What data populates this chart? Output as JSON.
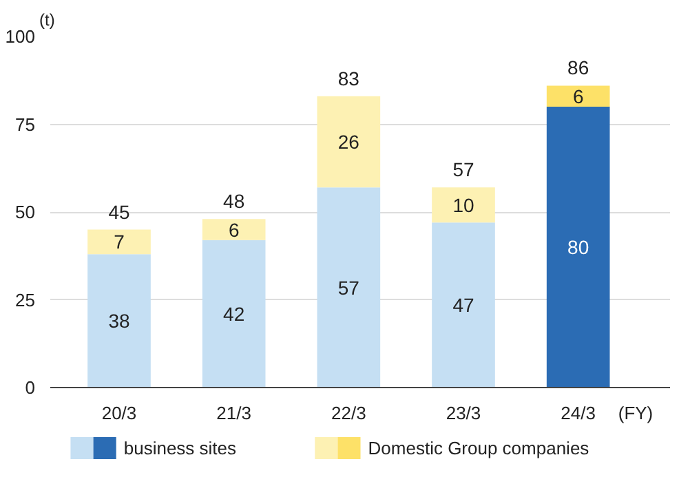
{
  "chart_data": {
    "type": "bar",
    "stacked": true,
    "ylabel": "(t)",
    "xlabel": "(FY)",
    "categories": [
      "20/3",
      "21/3",
      "22/3",
      "23/3",
      "24/3"
    ],
    "series": [
      {
        "name": "business sites",
        "colors": [
          "#c5dff3",
          "#c5dff3",
          "#c5dff3",
          "#c5dff3",
          "#2b6cb4"
        ],
        "values": [
          38,
          42,
          57,
          47,
          80
        ]
      },
      {
        "name": "Domestic Group companies",
        "colors": [
          "#fdf1b3",
          "#fdf1b3",
          "#fdf1b3",
          "#fdf1b3",
          "#fde168"
        ],
        "values": [
          7,
          6,
          26,
          10,
          6
        ]
      }
    ],
    "totals": [
      "45",
      "48",
      "83",
      "57",
      "86"
    ],
    "data_labels": true,
    "ylim": [
      0,
      100
    ],
    "yticks": [
      0,
      25,
      50,
      75,
      100
    ],
    "grid": "y",
    "legend": "bottom"
  }
}
